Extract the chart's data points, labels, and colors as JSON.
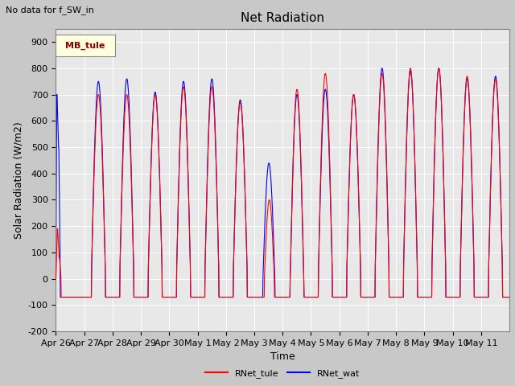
{
  "title": "Net Radiation",
  "xlabel": "Time",
  "ylabel": "Solar Radiation (W/m2)",
  "ylim": [
    -200,
    950
  ],
  "yticks": [
    -200,
    -100,
    0,
    100,
    200,
    300,
    400,
    500,
    600,
    700,
    800,
    900
  ],
  "annotation": "No data for f_SW_in",
  "legend_box_label": "MB_tule",
  "legend_entries": [
    "RNet_tule",
    "RNet_wat"
  ],
  "legend_colors": [
    "red",
    "blue"
  ],
  "num_days": 16,
  "tick_labels": [
    "Apr 26",
    "Apr 27",
    "Apr 28",
    "Apr 29",
    "Apr 30",
    "May 1",
    "May 2",
    "May 3",
    "May 4",
    "May 5",
    "May 6",
    "May 7",
    "May 8",
    "May 9",
    "May 10",
    "May 11"
  ],
  "fig_facecolor": "#c8c8c8",
  "ax_facecolor": "#e8e8e8",
  "grid_color": "white",
  "title_fontsize": 11,
  "label_fontsize": 9,
  "tick_fontsize": 8
}
